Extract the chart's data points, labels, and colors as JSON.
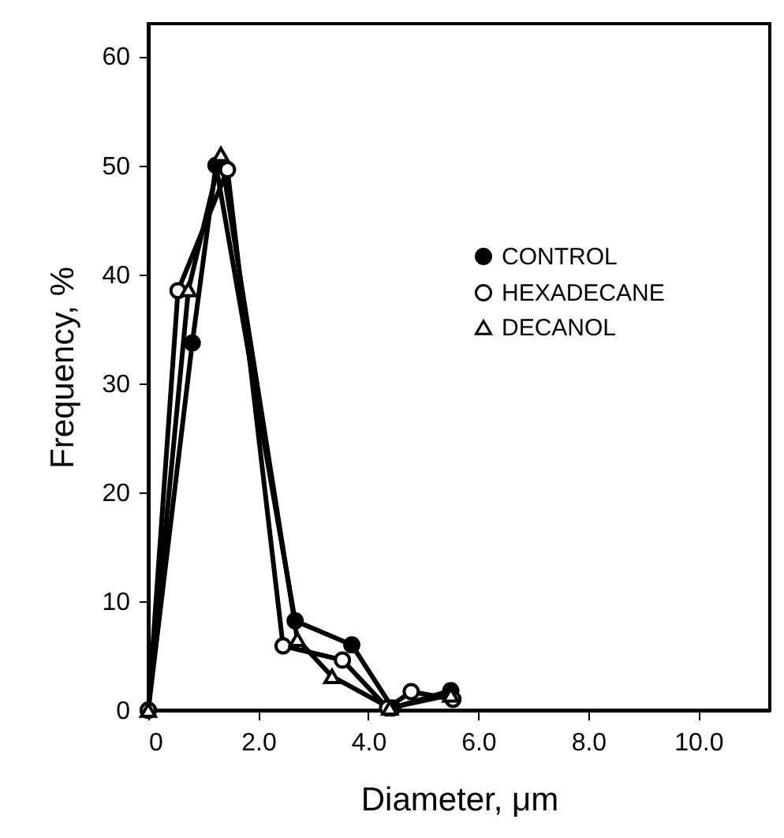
{
  "chart_data": {
    "type": "line",
    "xlabel": "Diameter, μm",
    "ylabel": "Frequency, %",
    "xlim": [
      0,
      11.3
    ],
    "ylim": [
      0,
      63
    ],
    "xticks": [
      {
        "value": 0,
        "label": "0"
      },
      {
        "value": 2,
        "label": "2.0"
      },
      {
        "value": 4,
        "label": "4.0"
      },
      {
        "value": 6,
        "label": "6.0"
      },
      {
        "value": 8,
        "label": "8.0"
      },
      {
        "value": 10,
        "label": "10.0"
      }
    ],
    "yticks": [
      0,
      10,
      20,
      30,
      40,
      50,
      60
    ],
    "grid": false,
    "legend": "right",
    "line_style": "solid",
    "series": [
      {
        "name": "CONTROL",
        "color": "#000000",
        "marker": "circle",
        "x": [
          0,
          0.8,
          1.23,
          2.67,
          3.7,
          4.44,
          5.5
        ],
        "values": [
          0,
          33.7,
          50,
          8.2,
          6,
          0.2,
          1.8
        ]
      },
      {
        "name": "HEXADECANE",
        "color": "#000000",
        "marker": "circle-open",
        "x": [
          0,
          0.54,
          1.44,
          2.45,
          3.53,
          4.35,
          4.78,
          5.54
        ],
        "values": [
          0,
          38.5,
          49.6,
          5.9,
          4.6,
          0.2,
          1.7,
          1
        ]
      },
      {
        "name": "DECANOL",
        "color": "#000000",
        "marker": "triangle-open",
        "x": [
          0,
          0.73,
          1.32,
          2.71,
          3.34,
          4.39,
          5.5
        ],
        "values": [
          0,
          38.6,
          51,
          6.5,
          3.1,
          0.2,
          1.4
        ]
      }
    ]
  }
}
